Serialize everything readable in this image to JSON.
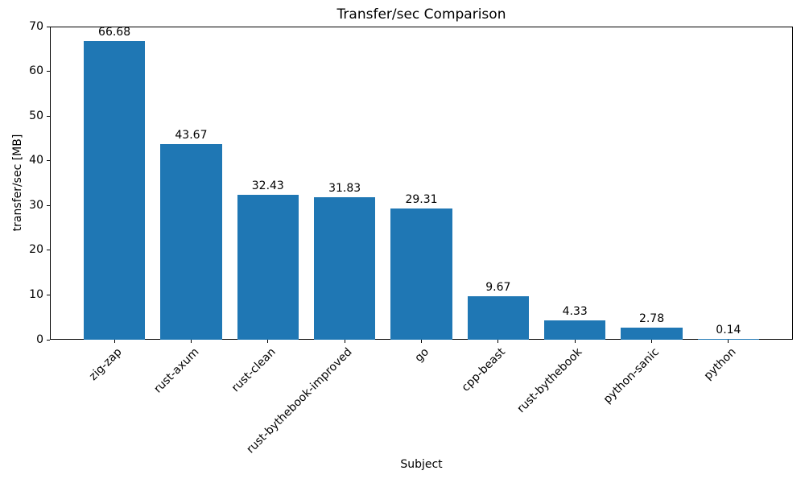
{
  "chart_data": {
    "type": "bar",
    "title": "Transfer/sec Comparison",
    "xlabel": "Subject",
    "ylabel": "transfer/sec [MB]",
    "categories": [
      "zig-zap",
      "rust-axum",
      "rust-clean",
      "rust-bythebook-improved",
      "go",
      "cpp-beast",
      "rust-bythebook",
      "python-sanic",
      "python"
    ],
    "values": [
      66.68,
      43.67,
      32.43,
      31.83,
      29.31,
      9.67,
      4.33,
      2.78,
      0.14
    ],
    "value_labels": [
      "66.68",
      "43.67",
      "32.43",
      "31.83",
      "29.31",
      "9.67",
      "4.33",
      "2.78",
      "0.14"
    ],
    "ylim": [
      0,
      70
    ],
    "yticks": [
      0,
      10,
      20,
      30,
      40,
      50,
      60,
      70
    ],
    "bar_color": "#1f77b4",
    "grid": false,
    "legend": false
  }
}
